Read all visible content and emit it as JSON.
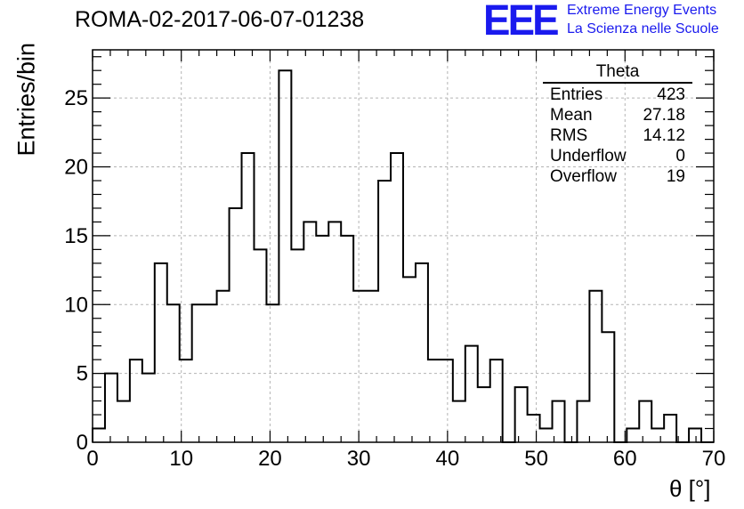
{
  "header": {
    "run_title": "ROMA-02-2017-06-07-01238",
    "logo_mark": "EEE",
    "logo_line1": "Extreme Energy Events",
    "logo_line2": "La Scienza nelle Scuole",
    "logo_color": "#1a1aee"
  },
  "stats": {
    "name": "Theta",
    "rows": [
      {
        "label": "Entries",
        "value": "423"
      },
      {
        "label": "Mean",
        "value": "27.18"
      },
      {
        "label": "RMS",
        "value": "14.12"
      },
      {
        "label": "Underflow",
        "value": "0"
      },
      {
        "label": "Overflow",
        "value": "19"
      }
    ]
  },
  "chart_data": {
    "type": "histogram",
    "xlabel": "θ [°]",
    "ylabel": "Entries/bin",
    "xlim": [
      0,
      70
    ],
    "ylim": [
      0,
      28.5
    ],
    "bin_width": 1.4,
    "bin_edges_start": 0,
    "values": [
      1,
      5,
      3,
      6,
      5,
      13,
      10,
      6,
      10,
      10,
      11,
      17,
      21,
      14,
      10,
      27,
      14,
      16,
      15,
      16,
      15,
      11,
      11,
      19,
      21,
      12,
      13,
      6,
      6,
      3,
      7,
      4,
      6,
      0,
      4,
      2,
      1,
      3,
      0,
      3,
      11,
      8,
      0,
      1,
      3,
      1,
      2,
      0,
      1,
      0
    ],
    "x_ticks": [
      0,
      10,
      20,
      30,
      40,
      50,
      60,
      70
    ],
    "y_ticks": [
      0,
      5,
      10,
      15,
      20,
      25
    ],
    "grid": true,
    "line_color": "#000000",
    "grid_color": "#b4b4b4"
  }
}
